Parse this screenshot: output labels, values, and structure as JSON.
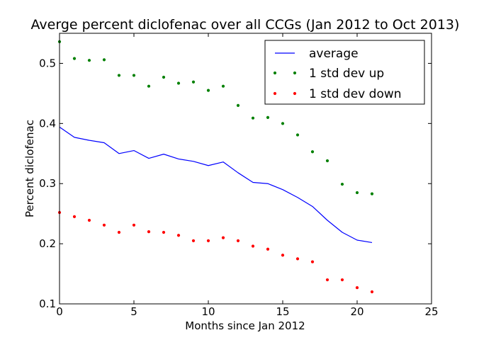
{
  "chart_data": {
    "type": "line",
    "title": "Averge percent diclofenac over all CCGs (Jan 2012 to Oct 2013)",
    "xlabel": "Months since Jan 2012",
    "ylabel": "Percent diclofenac",
    "xlim": [
      0,
      25
    ],
    "ylim": [
      0.1,
      0.55
    ],
    "x_ticks": [
      0,
      5,
      10,
      15,
      20,
      25
    ],
    "x_tick_labels": [
      "0",
      "5",
      "10",
      "15",
      "20",
      "25"
    ],
    "y_ticks": [
      0.1,
      0.2,
      0.3,
      0.4,
      0.5
    ],
    "y_tick_labels": [
      "0.1",
      "0.2",
      "0.3",
      "0.4",
      "0.5"
    ],
    "grid": false,
    "legend_position": "top-right",
    "x": [
      0,
      1,
      2,
      3,
      4,
      5,
      6,
      7,
      8,
      9,
      10,
      11,
      12,
      13,
      14,
      15,
      16,
      17,
      18,
      19,
      20,
      21
    ],
    "series": [
      {
        "name": "average",
        "style": "line",
        "color": "#0000ff",
        "values": [
          0.394,
          0.377,
          0.372,
          0.368,
          0.35,
          0.355,
          0.342,
          0.349,
          0.341,
          0.337,
          0.33,
          0.336,
          0.318,
          0.302,
          0.3,
          0.29,
          0.277,
          0.262,
          0.239,
          0.219,
          0.206,
          0.202
        ]
      },
      {
        "name": "1 std dev up",
        "style": "dots",
        "color": "#008000",
        "values": [
          0.536,
          0.508,
          0.505,
          0.506,
          0.48,
          0.48,
          0.462,
          0.477,
          0.467,
          0.469,
          0.455,
          0.462,
          0.43,
          0.409,
          0.41,
          0.4,
          0.381,
          0.353,
          0.338,
          0.299,
          0.285,
          0.283
        ]
      },
      {
        "name": "1 std dev down",
        "style": "dots",
        "color": "#ff0000",
        "values": [
          0.252,
          0.245,
          0.239,
          0.231,
          0.219,
          0.231,
          0.22,
          0.219,
          0.214,
          0.205,
          0.205,
          0.21,
          0.205,
          0.196,
          0.191,
          0.181,
          0.175,
          0.17,
          0.14,
          0.14,
          0.127,
          0.12
        ]
      }
    ]
  }
}
